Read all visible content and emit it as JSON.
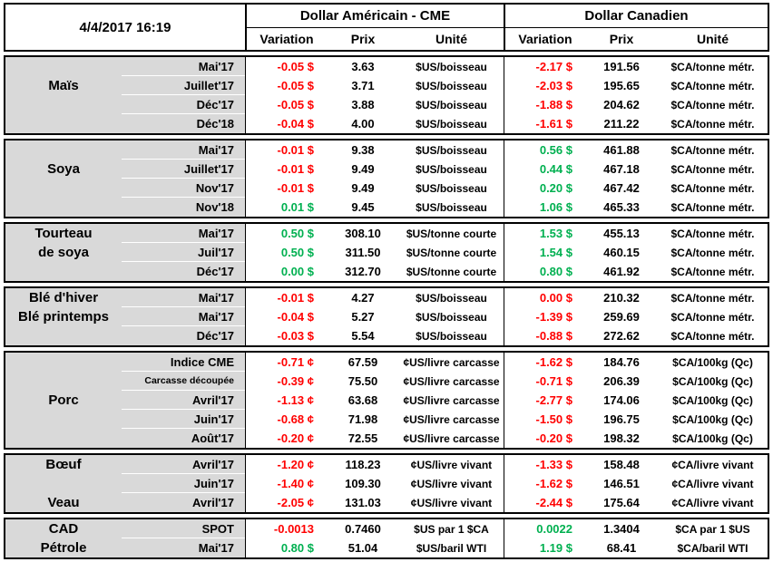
{
  "header": {
    "datetime": "4/4/2017 16:19",
    "us_group": "Dollar Américain - CME",
    "ca_group": "Dollar Canadien",
    "columns": [
      "Variation",
      "Prix",
      "Unité"
    ]
  },
  "colors": {
    "negative": "#ff0000",
    "positive": "#00b050",
    "label_bg": "#d9d9d9",
    "border": "#000000"
  },
  "sections": [
    {
      "id": "mais",
      "labels": [
        {
          "text": "Maïs",
          "row": 1
        }
      ],
      "rows": [
        {
          "contract": "Mai'17",
          "us": {
            "variation": "-0.05 $",
            "dir": "down",
            "prix": "3.63",
            "unite": "$US/boisseau"
          },
          "ca": {
            "variation": "-2.17 $",
            "dir": "down",
            "prix": "191.56",
            "unite": "$CA/tonne métr."
          }
        },
        {
          "contract": "Juillet'17",
          "us": {
            "variation": "-0.05 $",
            "dir": "down",
            "prix": "3.71",
            "unite": "$US/boisseau"
          },
          "ca": {
            "variation": "-2.03 $",
            "dir": "down",
            "prix": "195.65",
            "unite": "$CA/tonne métr."
          }
        },
        {
          "contract": "Déc'17",
          "us": {
            "variation": "-0.05 $",
            "dir": "down",
            "prix": "3.88",
            "unite": "$US/boisseau"
          },
          "ca": {
            "variation": "-1.88 $",
            "dir": "down",
            "prix": "204.62",
            "unite": "$CA/tonne métr."
          }
        },
        {
          "contract": "Déc'18",
          "us": {
            "variation": "-0.04 $",
            "dir": "down",
            "prix": "4.00",
            "unite": "$US/boisseau"
          },
          "ca": {
            "variation": "-1.61 $",
            "dir": "down",
            "prix": "211.22",
            "unite": "$CA/tonne métr."
          }
        }
      ]
    },
    {
      "id": "soya",
      "labels": [
        {
          "text": "Soya",
          "row": 1
        }
      ],
      "rows": [
        {
          "contract": "Mai'17",
          "us": {
            "variation": "-0.01 $",
            "dir": "down",
            "prix": "9.38",
            "unite": "$US/boisseau"
          },
          "ca": {
            "variation": "0.56 $",
            "dir": "up",
            "prix": "461.88",
            "unite": "$CA/tonne métr."
          }
        },
        {
          "contract": "Juillet'17",
          "us": {
            "variation": "-0.01 $",
            "dir": "down",
            "prix": "9.49",
            "unite": "$US/boisseau"
          },
          "ca": {
            "variation": "0.44 $",
            "dir": "up",
            "prix": "467.18",
            "unite": "$CA/tonne métr."
          }
        },
        {
          "contract": "Nov'17",
          "us": {
            "variation": "-0.01 $",
            "dir": "down",
            "prix": "9.49",
            "unite": "$US/boisseau"
          },
          "ca": {
            "variation": "0.20 $",
            "dir": "up",
            "prix": "467.42",
            "unite": "$CA/tonne métr."
          }
        },
        {
          "contract": "Nov'18",
          "us": {
            "variation": "0.01 $",
            "dir": "up",
            "prix": "9.45",
            "unite": "$US/boisseau"
          },
          "ca": {
            "variation": "1.06 $",
            "dir": "up",
            "prix": "465.33",
            "unite": "$CA/tonne métr."
          }
        }
      ]
    },
    {
      "id": "tourteau",
      "labels": [
        {
          "text": "Tourteau",
          "row": 0
        },
        {
          "text": "de soya",
          "row": 1
        }
      ],
      "rows": [
        {
          "contract": "Mai'17",
          "us": {
            "variation": "0.50 $",
            "dir": "up",
            "prix": "308.10",
            "unite": "$US/tonne courte"
          },
          "ca": {
            "variation": "1.53 $",
            "dir": "up",
            "prix": "455.13",
            "unite": "$CA/tonne métr."
          }
        },
        {
          "contract": "Juil'17",
          "us": {
            "variation": "0.50 $",
            "dir": "up",
            "prix": "311.50",
            "unite": "$US/tonne courte"
          },
          "ca": {
            "variation": "1.54 $",
            "dir": "up",
            "prix": "460.15",
            "unite": "$CA/tonne métr."
          }
        },
        {
          "contract": "Déc'17",
          "us": {
            "variation": "0.00 $",
            "dir": "up",
            "prix": "312.70",
            "unite": "$US/tonne courte"
          },
          "ca": {
            "variation": "0.80 $",
            "dir": "up",
            "prix": "461.92",
            "unite": "$CA/tonne métr."
          }
        }
      ]
    },
    {
      "id": "ble",
      "labels": [
        {
          "text": "Blé d'hiver",
          "row": 0
        },
        {
          "text": "Blé printemps",
          "row": 1
        }
      ],
      "rows": [
        {
          "contract": "Mai'17",
          "us": {
            "variation": "-0.01 $",
            "dir": "down",
            "prix": "4.27",
            "unite": "$US/boisseau"
          },
          "ca": {
            "variation": "0.00 $",
            "dir": "down",
            "prix": "210.32",
            "unite": "$CA/tonne métr."
          }
        },
        {
          "contract": "Mai'17",
          "us": {
            "variation": "-0.04 $",
            "dir": "down",
            "prix": "5.27",
            "unite": "$US/boisseau"
          },
          "ca": {
            "variation": "-1.39 $",
            "dir": "down",
            "prix": "259.69",
            "unite": "$CA/tonne métr."
          }
        },
        {
          "contract": "Déc'17",
          "us": {
            "variation": "-0.03 $",
            "dir": "down",
            "prix": "5.54",
            "unite": "$US/boisseau"
          },
          "ca": {
            "variation": "-0.88 $",
            "dir": "down",
            "prix": "272.62",
            "unite": "$CA/tonne métr."
          }
        }
      ]
    },
    {
      "id": "porc",
      "labels": [
        {
          "text": "Porc",
          "row": 2
        }
      ],
      "rows": [
        {
          "contract": "Indice CME",
          "us": {
            "variation": "-0.71 ¢",
            "dir": "down",
            "prix": "67.59",
            "unite": "¢US/livre carcasse"
          },
          "ca": {
            "variation": "-1.62 $",
            "dir": "down",
            "prix": "184.76",
            "unite": "$CA/100kg (Qc)"
          }
        },
        {
          "contract": "Carcasse découpée",
          "small": true,
          "us": {
            "variation": "-0.39 ¢",
            "dir": "down",
            "prix": "75.50",
            "unite": "¢US/livre carcasse"
          },
          "ca": {
            "variation": "-0.71 $",
            "dir": "down",
            "prix": "206.39",
            "unite": "$CA/100kg (Qc)"
          }
        },
        {
          "contract": "Avril'17",
          "us": {
            "variation": "-1.13 ¢",
            "dir": "down",
            "prix": "63.68",
            "unite": "¢US/livre carcasse"
          },
          "ca": {
            "variation": "-2.77 $",
            "dir": "down",
            "prix": "174.06",
            "unite": "$CA/100kg (Qc)"
          }
        },
        {
          "contract": "Juin'17",
          "us": {
            "variation": "-0.68 ¢",
            "dir": "down",
            "prix": "71.98",
            "unite": "¢US/livre carcasse"
          },
          "ca": {
            "variation": "-1.50 $",
            "dir": "down",
            "prix": "196.75",
            "unite": "$CA/100kg (Qc)"
          }
        },
        {
          "contract": "Août'17",
          "us": {
            "variation": "-0.20 ¢",
            "dir": "down",
            "prix": "72.55",
            "unite": "¢US/livre carcasse"
          },
          "ca": {
            "variation": "-0.20 $",
            "dir": "down",
            "prix": "198.32",
            "unite": "$CA/100kg (Qc)"
          }
        }
      ]
    },
    {
      "id": "boeuf-veau",
      "labels": [
        {
          "text": "Bœuf",
          "row": 0
        },
        {
          "text": "Veau",
          "row": 2
        }
      ],
      "rows": [
        {
          "contract": "Avril'17",
          "us": {
            "variation": "-1.20 ¢",
            "dir": "down",
            "prix": "118.23",
            "unite": "¢US/livre vivant"
          },
          "ca": {
            "variation": "-1.33 $",
            "dir": "down",
            "prix": "158.48",
            "unite": "¢CA/livre vivant"
          }
        },
        {
          "contract": "Juin'17",
          "us": {
            "variation": "-1.40 ¢",
            "dir": "down",
            "prix": "109.30",
            "unite": "¢US/livre vivant"
          },
          "ca": {
            "variation": "-1.62 $",
            "dir": "down",
            "prix": "146.51",
            "unite": "¢CA/livre vivant"
          }
        },
        {
          "contract": "Avril'17",
          "us": {
            "variation": "-2.05 ¢",
            "dir": "down",
            "prix": "131.03",
            "unite": "¢US/livre vivant"
          },
          "ca": {
            "variation": "-2.44 $",
            "dir": "down",
            "prix": "175.64",
            "unite": "¢CA/livre vivant"
          }
        }
      ]
    },
    {
      "id": "cad-petrole",
      "labels": [
        {
          "text": "CAD",
          "row": 0
        },
        {
          "text": "Pétrole",
          "row": 1
        }
      ],
      "rows": [
        {
          "contract": "SPOT",
          "us": {
            "variation": "-0.0013",
            "dir": "down",
            "prix": "0.7460",
            "unite": "$US par 1 $CA"
          },
          "ca": {
            "variation": "0.0022",
            "dir": "up",
            "prix": "1.3404",
            "unite": "$CA par 1 $US"
          }
        },
        {
          "contract": "Mai'17",
          "us": {
            "variation": "0.80 $",
            "dir": "up",
            "prix": "51.04",
            "unite": "$US/baril WTI"
          },
          "ca": {
            "variation": "1.19 $",
            "dir": "up",
            "prix": "68.41",
            "unite": "$CA/baril WTI"
          }
        }
      ]
    }
  ]
}
